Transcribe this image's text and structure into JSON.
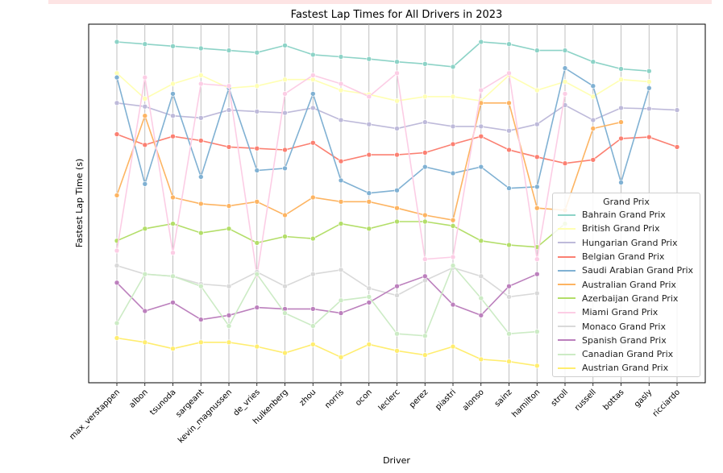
{
  "chart_data": {
    "type": "line",
    "title": "Fastest Lap Times for All Drivers in 2023",
    "xlabel": "Driver",
    "ylabel": "Fastest Lap Time (s)",
    "grid": "vertical",
    "legend": {
      "title": "Grand Prix",
      "placement": "lower-right"
    },
    "categories": [
      "max_verstappen",
      "albon",
      "tsunoda",
      "sargeant",
      "kevin_magnussen",
      "de_vries",
      "hulkenberg",
      "zhou",
      "norris",
      "ocon",
      "leclerc",
      "perez",
      "piastri",
      "alonso",
      "sainz",
      "hamilton",
      "stroll",
      "russell",
      "bottas",
      "gasly",
      "ricciardo"
    ],
    "series": [
      {
        "name": "Bahrain Grand Prix",
        "color": "#8dd3c7",
        "values": [
          97.0,
          96.7,
          96.4,
          96.1,
          95.8,
          95.5,
          96.5,
          95.2,
          94.9,
          94.6,
          94.2,
          93.9,
          93.5,
          97.0,
          96.7,
          95.8,
          95.8,
          94.2,
          93.2,
          92.9,
          null
        ]
      },
      {
        "name": "British Grand Prix",
        "color": "#ffffb3",
        "values": [
          92.6,
          89.0,
          91.1,
          92.3,
          90.5,
          90.8,
          91.7,
          91.7,
          90.2,
          89.6,
          88.7,
          89.3,
          89.3,
          88.7,
          92.3,
          90.2,
          91.4,
          89.3,
          91.7,
          91.4,
          null
        ]
      },
      {
        "name": "Hungarian Grand Prix",
        "color": "#bebada",
        "values": [
          88.4,
          87.9,
          86.6,
          86.3,
          87.4,
          87.2,
          87.0,
          87.7,
          86.0,
          85.4,
          84.8,
          85.7,
          85.1,
          85.1,
          84.5,
          85.4,
          88.1,
          86.0,
          87.7,
          87.6,
          87.4
        ]
      },
      {
        "name": "Belgian Grand Prix",
        "color": "#fb8072",
        "values": [
          84.0,
          82.5,
          83.7,
          83.1,
          82.2,
          82.0,
          81.8,
          82.8,
          80.2,
          81.1,
          81.1,
          81.4,
          82.6,
          83.7,
          81.8,
          80.8,
          79.9,
          80.4,
          83.4,
          83.6,
          82.2
        ]
      },
      {
        "name": "Saudi Arabian Grand Prix",
        "color": "#80b1d3",
        "values": [
          92.0,
          77.0,
          89.7,
          78.0,
          90.5,
          78.9,
          79.2,
          89.7,
          77.5,
          75.7,
          76.1,
          79.4,
          78.5,
          79.4,
          76.4,
          76.6,
          93.3,
          90.8,
          77.2,
          90.5,
          null
        ]
      },
      {
        "name": "Australian Grand Prix",
        "color": "#fdb462",
        "values": [
          75.4,
          86.6,
          75.1,
          74.2,
          73.9,
          74.5,
          72.6,
          75.1,
          74.5,
          74.5,
          73.6,
          72.6,
          71.9,
          88.4,
          88.4,
          73.6,
          73.3,
          84.8,
          85.7,
          null,
          null
        ]
      },
      {
        "name": "Azerbaijan Grand Prix",
        "color": "#b3de69",
        "values": [
          69.0,
          70.7,
          71.4,
          70.1,
          70.7,
          68.7,
          69.6,
          69.3,
          71.4,
          70.7,
          71.7,
          71.7,
          71.1,
          69.0,
          68.4,
          68.1,
          71.4,
          null,
          null,
          null,
          null
        ]
      },
      {
        "name": "Miami Grand Prix",
        "color": "#fccde5",
        "values": [
          67.6,
          92.0,
          67.3,
          91.1,
          90.8,
          64.1,
          89.7,
          92.3,
          91.1,
          89.3,
          92.6,
          66.4,
          66.7,
          90.2,
          92.6,
          66.4,
          89.7,
          null,
          null,
          null,
          null
        ]
      },
      {
        "name": "Monaco Grand Prix",
        "color": "#d9d9d9",
        "values": [
          65.5,
          64.3,
          64.0,
          62.9,
          62.6,
          64.6,
          62.6,
          64.3,
          64.9,
          62.3,
          61.3,
          63.4,
          65.2,
          64.0,
          61.1,
          61.6,
          null,
          null,
          null,
          null,
          null
        ]
      },
      {
        "name": "Spanish Grand Prix",
        "color": "#bc80bd",
        "values": [
          63.1,
          59.1,
          60.3,
          57.9,
          58.5,
          59.6,
          59.4,
          59.4,
          58.8,
          60.3,
          62.6,
          64.0,
          60.0,
          58.5,
          62.6,
          64.3,
          null,
          null,
          null,
          null,
          null
        ]
      },
      {
        "name": "Canadian Grand Prix",
        "color": "#ccebc5",
        "values": [
          57.4,
          64.3,
          64.0,
          62.6,
          57.0,
          64.3,
          58.8,
          57.0,
          60.6,
          61.1,
          55.9,
          55.6,
          65.5,
          60.9,
          55.9,
          56.2,
          null,
          null,
          null,
          null,
          null
        ]
      },
      {
        "name": "Austrian Grand Prix",
        "color": "#ffed6f",
        "values": [
          55.3,
          54.7,
          53.8,
          54.7,
          54.7,
          54.1,
          53.2,
          54.4,
          52.6,
          54.4,
          53.5,
          52.9,
          54.1,
          52.3,
          52.0,
          51.4,
          null,
          null,
          null,
          null,
          null
        ]
      }
    ]
  }
}
